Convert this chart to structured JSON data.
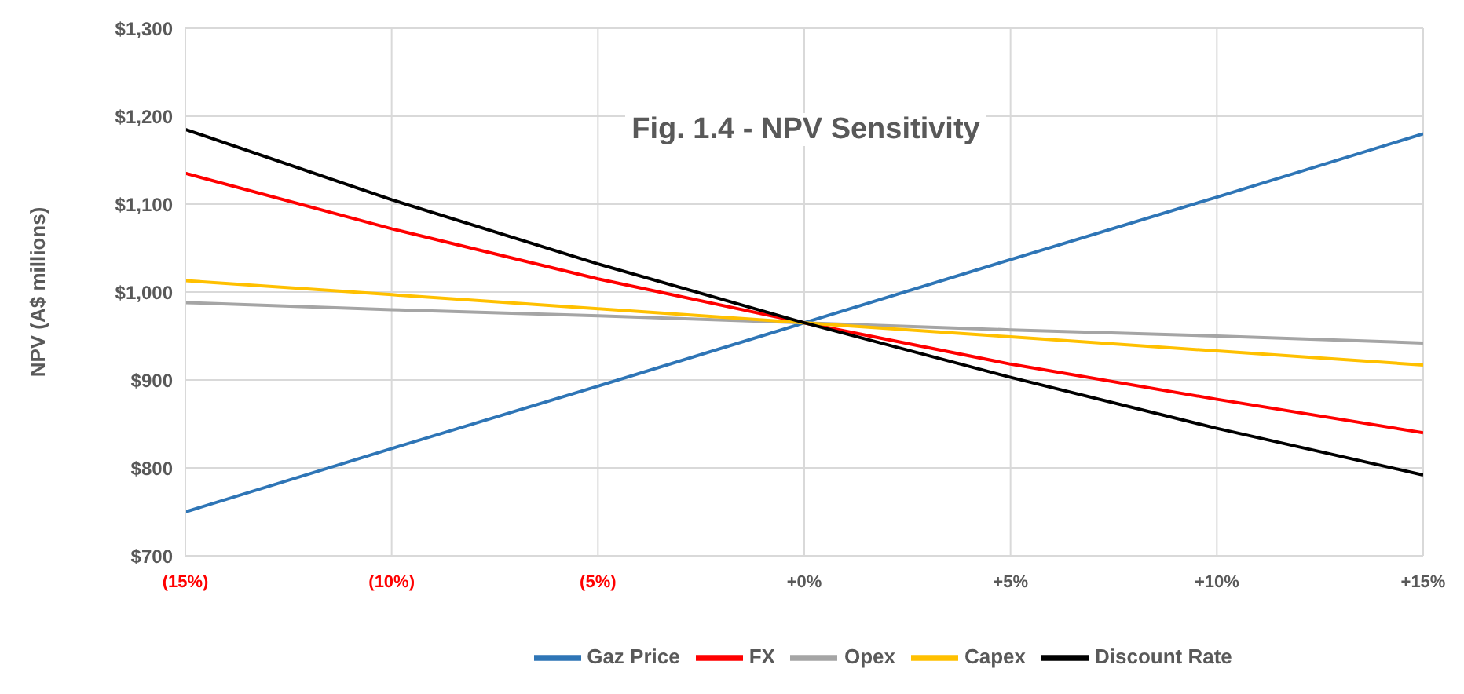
{
  "chart_data": {
    "type": "line",
    "title": "Fig. 1.4 - NPV Sensitivity",
    "ylabel": "NPV (A$ millions)",
    "x": [
      -15,
      -10,
      -5,
      0,
      5,
      10,
      15
    ],
    "xlim": [
      -15,
      15
    ],
    "xticks": [
      {
        "value": -15,
        "label": "(15%)"
      },
      {
        "value": -10,
        "label": "(10%)"
      },
      {
        "value": -5,
        "label": "(5%)"
      },
      {
        "value": 0,
        "label": "+0%"
      },
      {
        "value": 5,
        "label": "+5%"
      },
      {
        "value": 10,
        "label": "+10%"
      },
      {
        "value": 15,
        "label": "+15%"
      }
    ],
    "ylim": [
      700,
      1300
    ],
    "yticks": [
      {
        "value": 700,
        "label": "$700"
      },
      {
        "value": 800,
        "label": "$800"
      },
      {
        "value": 900,
        "label": "$900"
      },
      {
        "value": 1000,
        "label": "$1,000"
      },
      {
        "value": 1100,
        "label": "$1,100"
      },
      {
        "value": 1200,
        "label": "$1,200"
      },
      {
        "value": 1300,
        "label": "$1,300"
      }
    ],
    "series": [
      {
        "name": "Gaz Price",
        "color": "#2e75b6",
        "values": [
          750,
          822,
          893,
          965,
          1037,
          1108,
          1180
        ]
      },
      {
        "name": "FX",
        "color": "#ff0000",
        "values": [
          1135,
          1072,
          1015,
          965,
          918,
          878,
          840
        ]
      },
      {
        "name": "Opex",
        "color": "#a5a5a5",
        "values": [
          988,
          980,
          973,
          965,
          957,
          950,
          942
        ]
      },
      {
        "name": "Capex",
        "color": "#ffc000",
        "values": [
          1013,
          997,
          981,
          965,
          949,
          933,
          917
        ]
      },
      {
        "name": "Discount Rate",
        "color": "#000000",
        "values": [
          1185,
          1105,
          1032,
          965,
          903,
          845,
          792
        ]
      }
    ],
    "grid": true,
    "legend": "bottom",
    "marker": "none",
    "line_style": "solid"
  }
}
